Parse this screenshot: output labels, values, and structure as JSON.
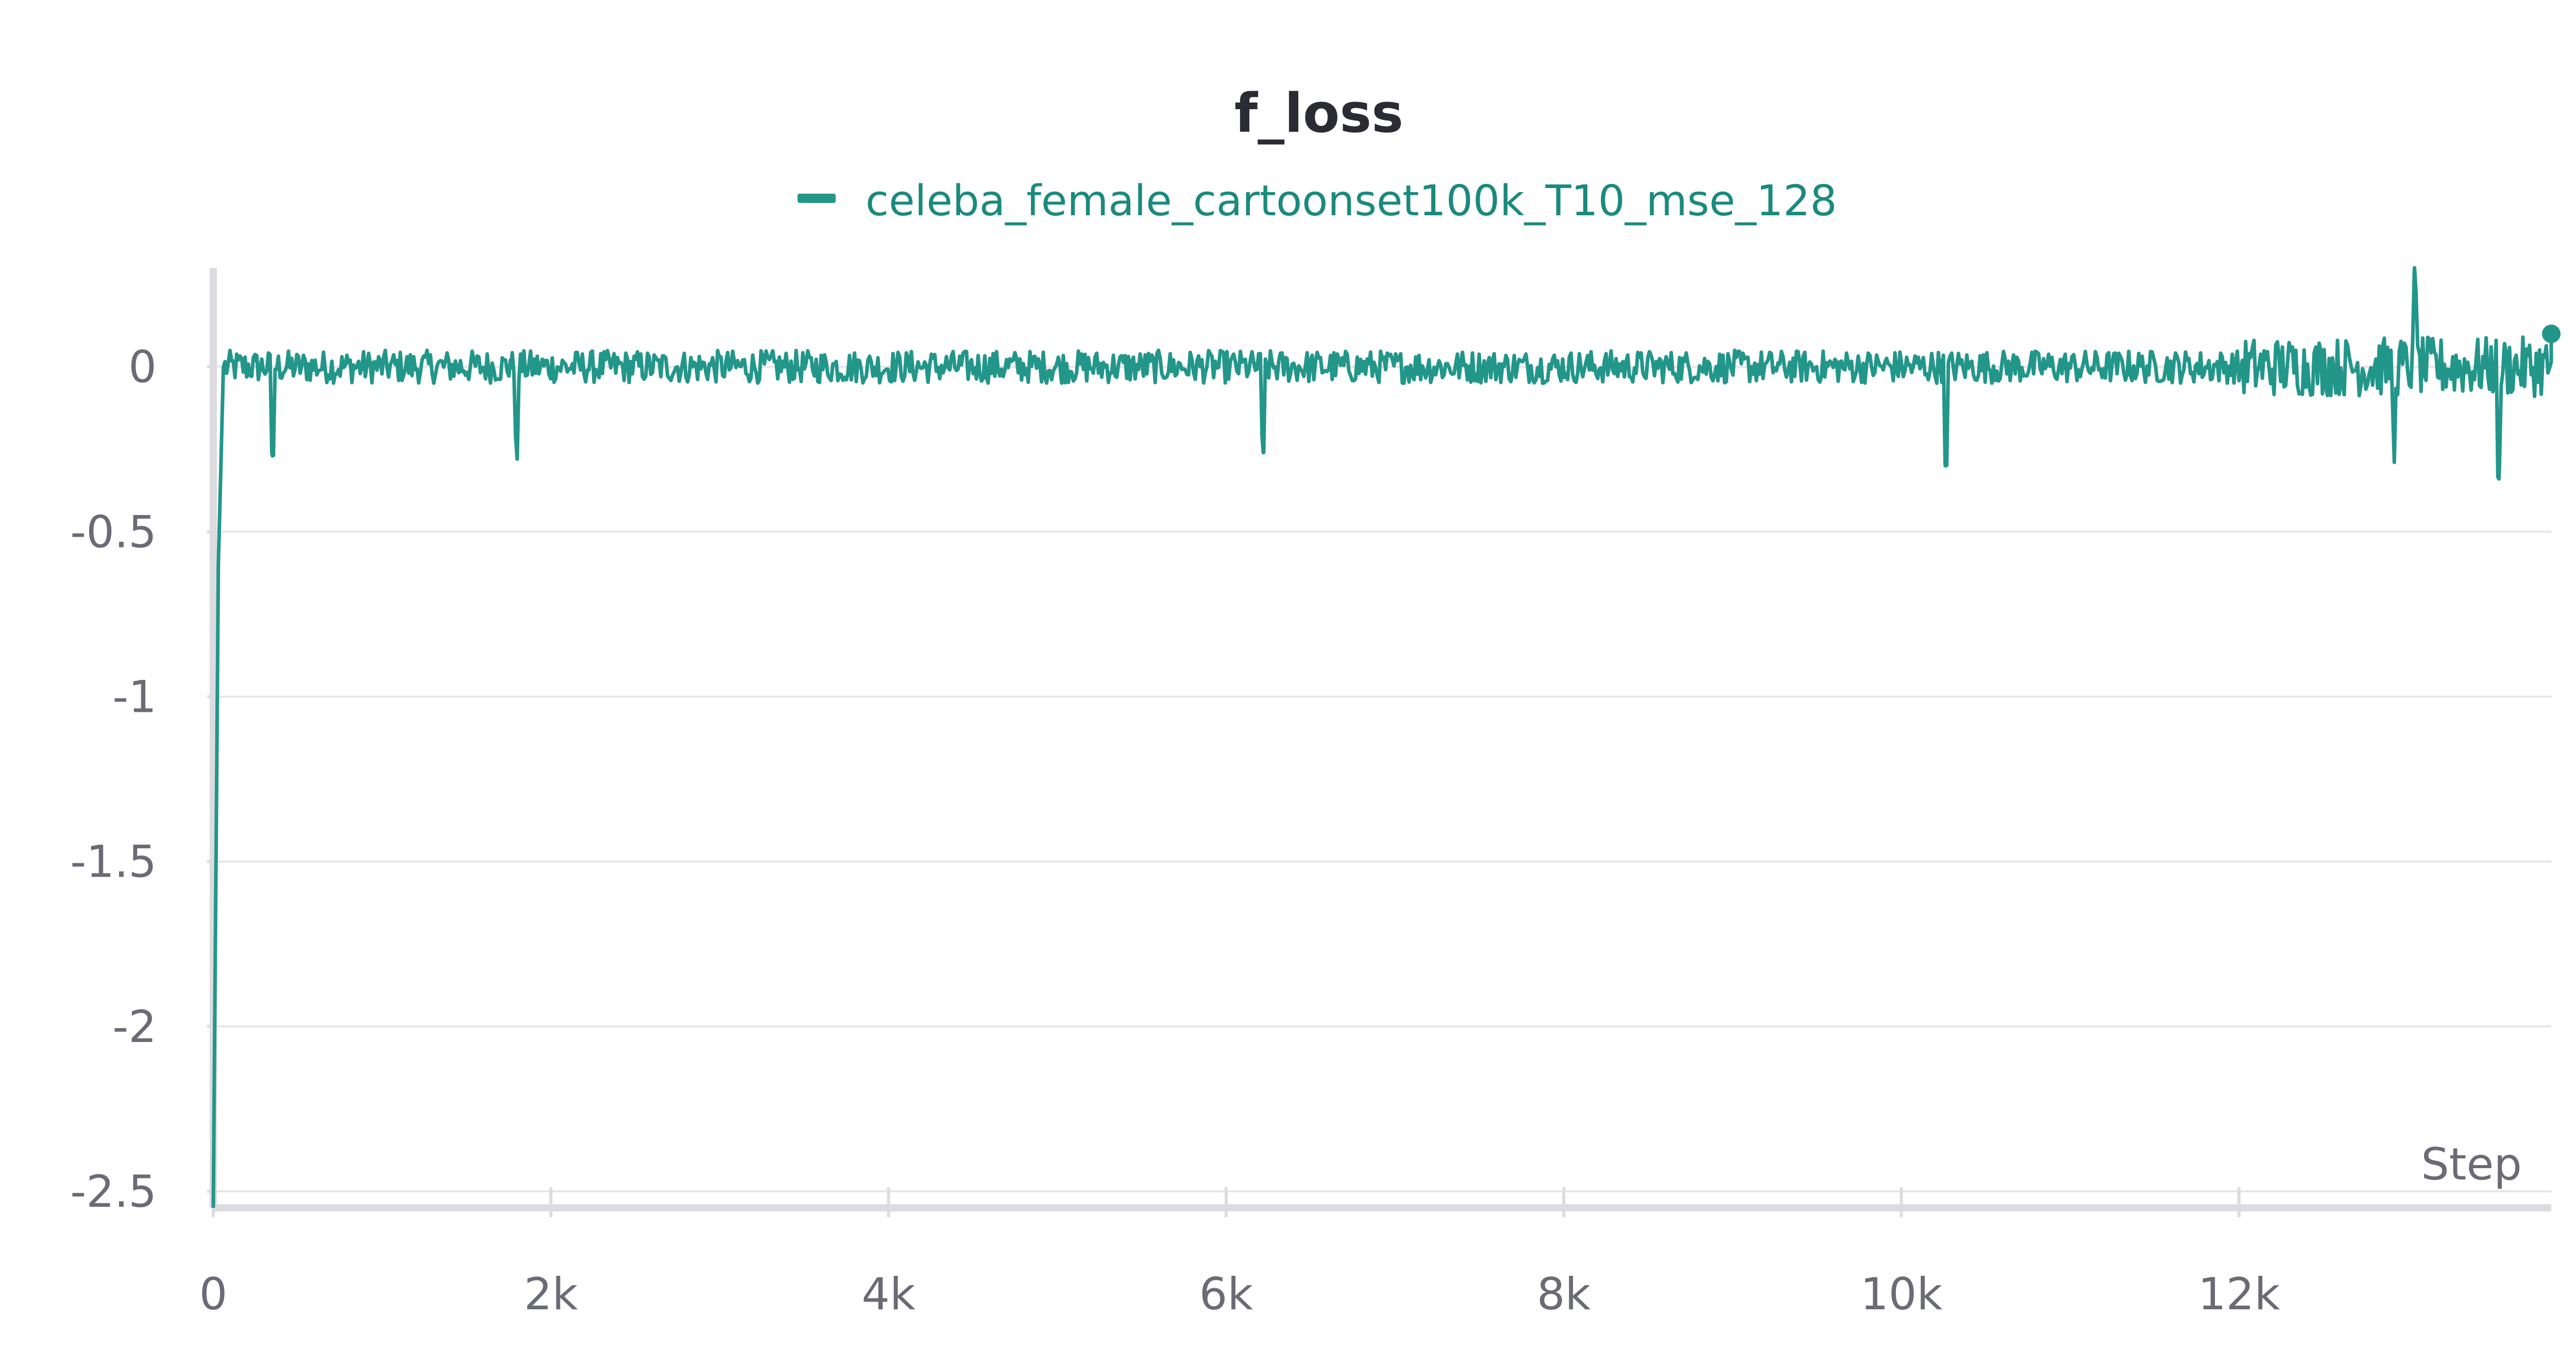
{
  "chart_data": {
    "type": "line",
    "title": "f_loss",
    "xlabel": "Step",
    "ylabel": "",
    "xlim": [
      0,
      13850
    ],
    "ylim": [
      -2.55,
      0.3
    ],
    "x_ticks": [
      0,
      2000,
      4000,
      6000,
      8000,
      10000,
      12000
    ],
    "x_tick_labels": [
      "0",
      "2k",
      "4k",
      "6k",
      "8k",
      "10k",
      "12k"
    ],
    "y_ticks": [
      0,
      -0.5,
      -1,
      -1.5,
      -2,
      -2.5
    ],
    "y_tick_labels": [
      "0",
      "-0.5",
      "-1",
      "-1.5",
      "-2",
      "-2.5"
    ],
    "grid": true,
    "legend": "top-center",
    "series": [
      {
        "name": "celeba_female_cartoonset100k_T10_mse_128",
        "color": "#23968a",
        "x": [
          0,
          30,
          60,
          250,
          350,
          1760,
          1800,
          6180,
          6220,
          10230,
          10260,
          12900,
          12920,
          13040,
          13070,
          13540,
          13570,
          13850
        ],
        "y": [
          -2.55,
          -0.6,
          0.0,
          0.02,
          -0.27,
          0.02,
          -0.28,
          0.01,
          -0.26,
          0.02,
          -0.3,
          0.05,
          -0.29,
          0.3,
          0.05,
          -0.34,
          0.05,
          0.1
        ],
        "noise_amplitude": 0.05,
        "end_marker": [
          13850,
          0.1
        ]
      }
    ]
  }
}
